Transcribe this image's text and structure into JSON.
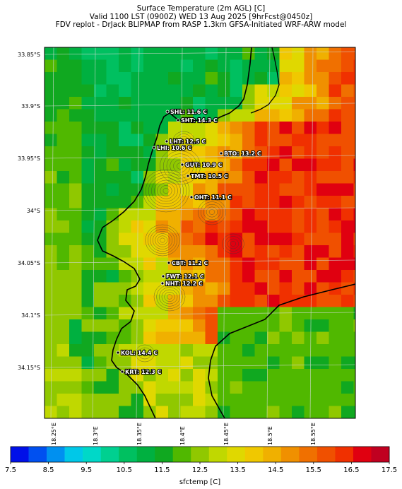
{
  "header": {
    "line1": "Surface Temperature (2m AGL) [C]",
    "line2": "Valid 1100 LST (0900Z) WED 13 Aug 2025 [9hrFcst@0450z]",
    "line3": "FDV replot - DrJack BLIPMAP from RASP 1.3km GFSA-Initiated WRF-ARW model"
  },
  "lat_labels": [
    "33.85°S",
    "33.9°S",
    "33.95°S",
    "34°S",
    "34.05°S",
    "34.1°S",
    "34.15°S"
  ],
  "lon_labels": [
    "18.25°E",
    "18.3°E",
    "18.35°E",
    "18.4°E",
    "18.45°E",
    "18.5°E",
    "18.55°E"
  ],
  "stations": [
    {
      "code": "SHL",
      "text": "SHL: 11.6 C",
      "temp": 11.6
    },
    {
      "code": "SHT",
      "text": "SHT: 14.3 C",
      "temp": 14.3
    },
    {
      "code": "LHT",
      "text": "LHT: 12.5 C",
      "temp": 12.5
    },
    {
      "code": "LHI",
      "text": "LHI: 10.6 C",
      "temp": 10.6
    },
    {
      "code": "BTO",
      "text": "BTO: 13.2 C",
      "temp": 13.2
    },
    {
      "code": "GUT",
      "text": "GUT: 10.9 C",
      "temp": 10.9
    },
    {
      "code": "TMT",
      "text": "TMT: 10.5 C",
      "temp": 10.5
    },
    {
      "code": "OHT",
      "text": "OHT: 11.1 C",
      "temp": 11.1
    },
    {
      "code": "CBT",
      "text": "CBT: 11.2 C",
      "temp": 11.2
    },
    {
      "code": "FWT",
      "text": "FWT: 12.1 C",
      "temp": 12.1
    },
    {
      "code": "NHT",
      "text": "NHT: 12.2 C",
      "temp": 12.2
    },
    {
      "code": "KOL",
      "text": "KOL: 14.4 C",
      "temp": 14.4
    },
    {
      "code": "KRT",
      "text": "KRT: 12.3 C",
      "temp": 12.3
    }
  ],
  "colorbar": {
    "label": "sfctemp [C]",
    "ticks": [
      "7.5",
      "8.5",
      "9.5",
      "10.5",
      "11.5",
      "12.5",
      "13.5",
      "14.5",
      "15.5",
      "16.5",
      "17.5"
    ],
    "colors": [
      "#0010e8",
      "#0050f0",
      "#0090f0",
      "#00c8e8",
      "#00d8c8",
      "#00d090",
      "#00c060",
      "#00b040",
      "#10a820",
      "#50b800",
      "#90c800",
      "#c0d800",
      "#e0d800",
      "#f0c800",
      "#f0b000",
      "#f09000",
      "#f07000",
      "#f05000",
      "#f03000",
      "#e00010",
      "#c00020"
    ]
  }
}
